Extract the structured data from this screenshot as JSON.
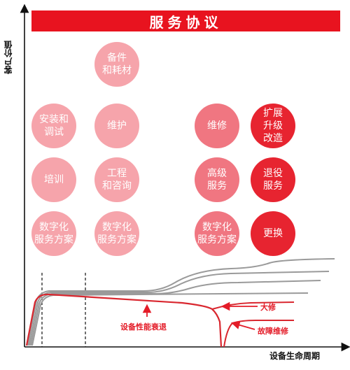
{
  "title": "服务协议",
  "y_axis_label": "客户价值",
  "x_axis_label": "设备生命周期",
  "services": [
    {
      "label": "备件\n和耗材",
      "tone": "light"
    },
    {
      "label": "安装和\n调试",
      "tone": "light"
    },
    {
      "label": "维护",
      "tone": "light"
    },
    {
      "label": "维修",
      "tone": "medium"
    },
    {
      "label": "扩展\n升级\n改造",
      "tone": "deep"
    },
    {
      "label": "培训",
      "tone": "light"
    },
    {
      "label": "工程\n和咨询",
      "tone": "light"
    },
    {
      "label": "高级\n服务",
      "tone": "medium"
    },
    {
      "label": "退役\n服务",
      "tone": "deep"
    },
    {
      "label": "数字化\n服务方案",
      "tone": "light"
    },
    {
      "label": "数字化\n服务方案",
      "tone": "light"
    },
    {
      "label": "数字化\n服务方案",
      "tone": "medium"
    },
    {
      "label": "更换",
      "tone": "deep"
    }
  ],
  "annotations": {
    "degradation": "设备性能衰退",
    "overhaul": "大修",
    "fault_repair": "故障维修"
  },
  "colors": {
    "banner": "#e8131f",
    "light": "#f6a4ab",
    "medium": "#f07681",
    "deep": "#e72430",
    "curve_red": "#d9272f",
    "curve_grey": "#9a9a9a"
  }
}
